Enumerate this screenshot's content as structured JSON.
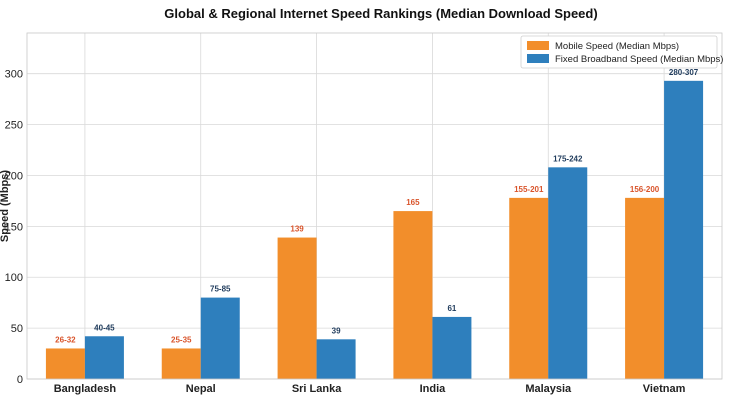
{
  "chart_data": {
    "type": "bar",
    "title": "Global & Regional Internet Speed Rankings (Median Download Speed)",
    "xlabel": "",
    "ylabel": "Speed (Mbps)",
    "ylim": [
      0,
      340
    ],
    "yticks": [
      0,
      50,
      100,
      150,
      200,
      250,
      300
    ],
    "grid": true,
    "legend_position": "top-right",
    "categories": [
      "Bangladesh",
      "Nepal",
      "Sri Lanka",
      "India",
      "Malaysia",
      "Vietnam"
    ],
    "highlight_category": "Bangladesh",
    "series": [
      {
        "name": "Mobile Speed (Median Mbps)",
        "color": "#f28e2b",
        "label_color": "#d9542b",
        "values": [
          30,
          30,
          139,
          165,
          178,
          178
        ],
        "labels": [
          "26-32",
          "25-35",
          "139",
          "165",
          "155-201",
          "156-200"
        ]
      },
      {
        "name": "Fixed Broadband Speed (Median Mbps)",
        "color": "#2e7fbd",
        "label_color": "#1f3b5c",
        "values": [
          42,
          80,
          39,
          61,
          208,
          293
        ],
        "labels": [
          "40-45",
          "75-85",
          "39",
          "61",
          "175-242",
          "280-307"
        ]
      }
    ],
    "highlight_color": "#d9534f"
  }
}
